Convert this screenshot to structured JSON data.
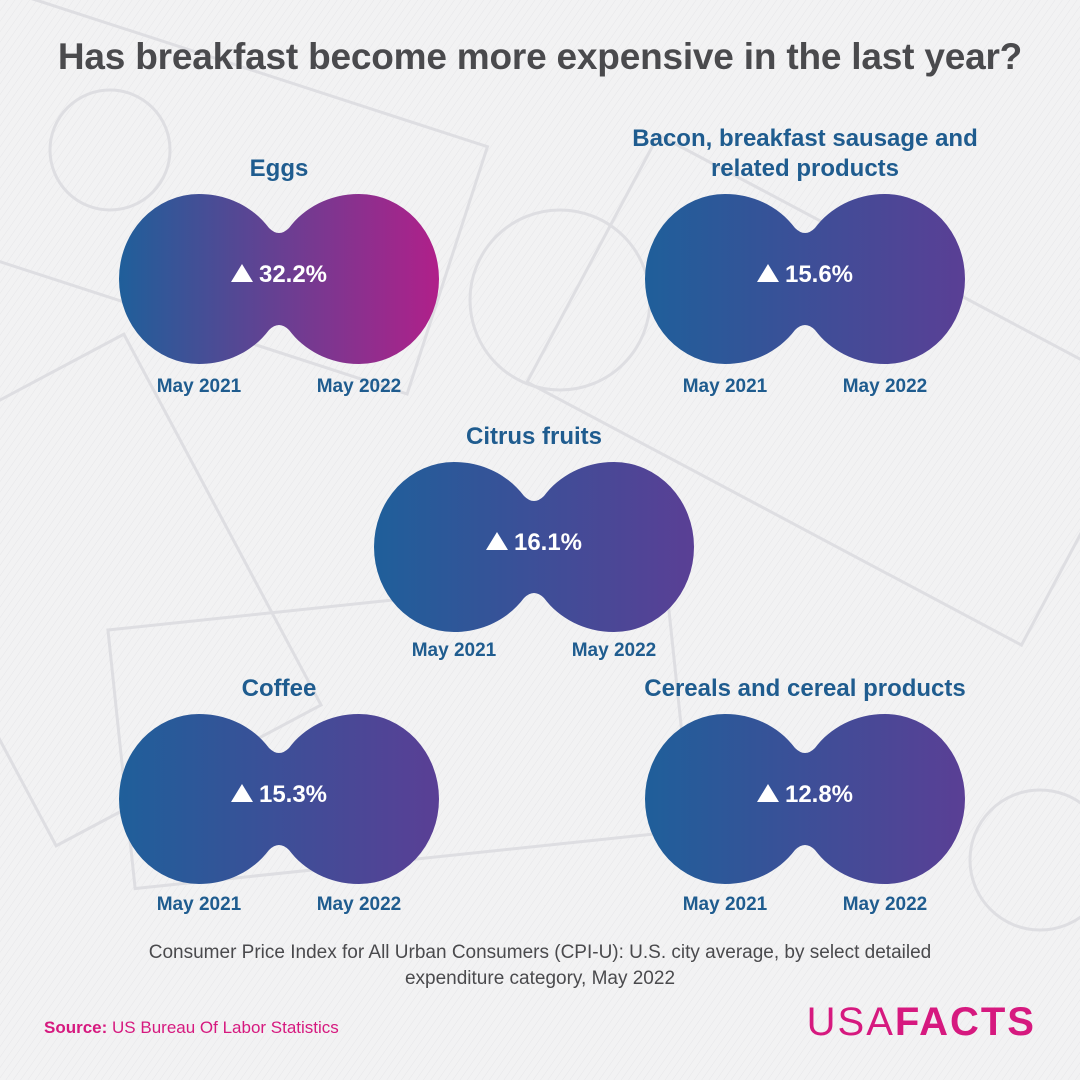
{
  "title": "Has breakfast become more expensive in the last year?",
  "chart_data": {
    "type": "comparison",
    "title": "Has breakfast become more expensive in the last year?",
    "period_labels": [
      "May 2021",
      "May 2022"
    ],
    "unit": "percent change",
    "items": [
      {
        "category": "Eggs",
        "change_pct": 32.2,
        "label": "32.2%"
      },
      {
        "category": "Bacon, breakfast sausage and related products",
        "change_pct": 15.6,
        "label": "15.6%"
      },
      {
        "category": "Citrus fruits",
        "change_pct": 16.1,
        "label": "16.1%"
      },
      {
        "category": "Coffee",
        "change_pct": 15.3,
        "label": "15.3%"
      },
      {
        "category": "Cereals and cereal products",
        "change_pct": 12.8,
        "label": "12.8%"
      }
    ]
  },
  "note": "Consumer Price Index for All Urban Consumers (CPI-U): U.S. city average, by select detailed expenditure category, May 2022",
  "source": {
    "label": "Source:",
    "text": "US Bureau Of Labor Statistics"
  },
  "logo": {
    "part1": "USA",
    "part2": "FACTS"
  },
  "colors": {
    "start": "#1f5f9a",
    "mid": "#5a3f95",
    "end_max": "#b0208a",
    "title": "#4a4a4d",
    "accent": "#d6197f"
  }
}
